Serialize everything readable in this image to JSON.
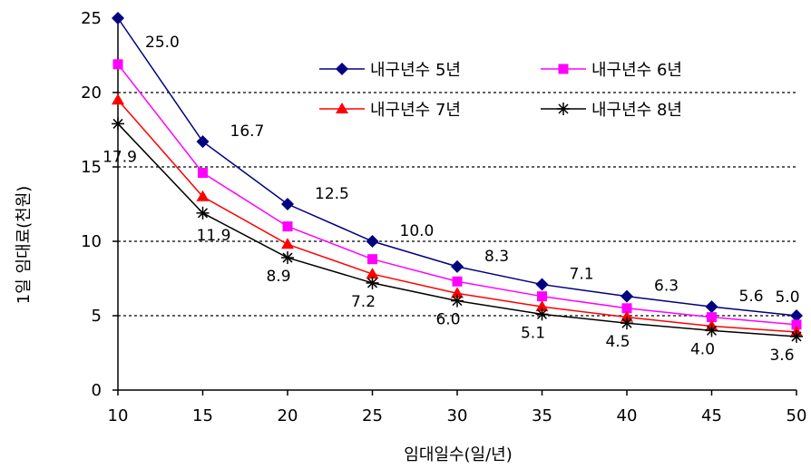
{
  "chart_data": {
    "type": "line",
    "title": "",
    "xlabel": "임대일수(일/년)",
    "ylabel": "1일 임대료(천원)",
    "x": [
      10,
      15,
      20,
      25,
      30,
      35,
      40,
      45,
      50
    ],
    "xlim": [
      10,
      50
    ],
    "ylim": [
      0,
      25
    ],
    "yticks": [
      0,
      5,
      10,
      15,
      20,
      25
    ],
    "grid": "horizontal-dashed",
    "legend_position": "top-right",
    "series": [
      {
        "name": "내구년수 5년",
        "color": "#000080",
        "marker": "diamond",
        "values": [
          25.0,
          16.7,
          12.5,
          10.0,
          8.3,
          7.1,
          6.3,
          5.6,
          5.0
        ],
        "labels": [
          "25.0",
          "16.7",
          "12.5",
          "10.0",
          "8.3",
          "7.1",
          "6.3",
          "5.6",
          "5.0"
        ]
      },
      {
        "name": "내구년수 6년",
        "color": "#ff00ff",
        "marker": "square",
        "values": [
          21.9,
          14.6,
          11.0,
          8.8,
          7.3,
          6.3,
          5.5,
          4.9,
          4.4
        ],
        "labels": []
      },
      {
        "name": "내구년수 7년",
        "color": "#ff0000",
        "marker": "triangle",
        "values": [
          19.5,
          13.0,
          9.8,
          7.8,
          6.5,
          5.6,
          4.9,
          4.3,
          3.9
        ],
        "labels": []
      },
      {
        "name": "내구년수 8년",
        "color": "#000000",
        "marker": "star",
        "values": [
          17.9,
          11.9,
          8.9,
          7.2,
          6.0,
          5.1,
          4.5,
          4.0,
          3.6
        ],
        "labels": [
          "17.9",
          "11.9",
          "8.9",
          "7.2",
          "6.0",
          "5.1",
          "4.5",
          "4.0",
          "3.6"
        ]
      }
    ]
  }
}
